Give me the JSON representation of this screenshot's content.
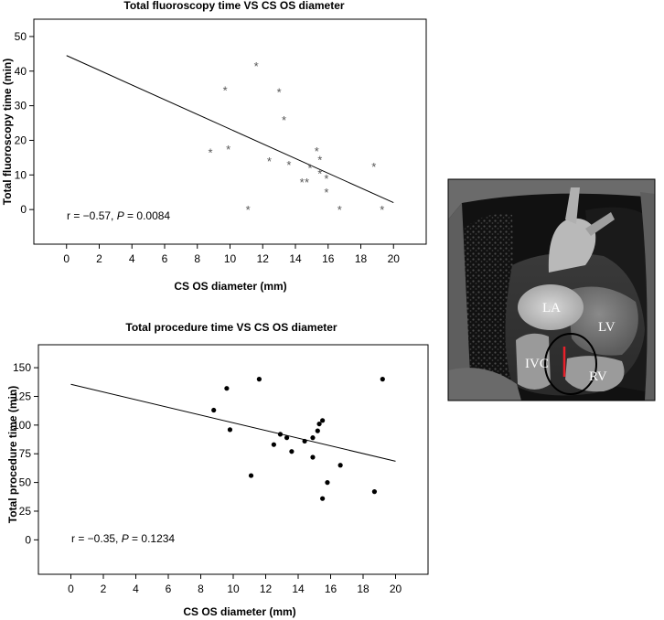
{
  "chart_data": [
    {
      "type": "scatter",
      "title": "Total fluoroscopy time VS CS OS diameter",
      "xlabel": "CS OS diameter (mm)",
      "ylabel": "Total fluoroscopy time (min)",
      "xlim": [
        -2,
        22
      ],
      "ylim": [
        -10,
        55
      ],
      "x_ticks": [
        0,
        2,
        4,
        6,
        8,
        10,
        12,
        14,
        16,
        18,
        20
      ],
      "y_ticks": [
        0,
        10,
        20,
        30,
        40,
        50
      ],
      "marker": "*",
      "points": [
        {
          "x": 8.8,
          "y": 16.5
        },
        {
          "x": 9.7,
          "y": 34.5
        },
        {
          "x": 9.9,
          "y": 17.5
        },
        {
          "x": 11.1,
          "y": 0.0
        },
        {
          "x": 11.6,
          "y": 41.5
        },
        {
          "x": 12.4,
          "y": 14.0
        },
        {
          "x": 13.0,
          "y": 34.0
        },
        {
          "x": 13.3,
          "y": 26.0
        },
        {
          "x": 13.6,
          "y": 13.0
        },
        {
          "x": 14.4,
          "y": 8.0
        },
        {
          "x": 14.7,
          "y": 8.0
        },
        {
          "x": 14.9,
          "y": 12.0
        },
        {
          "x": 15.3,
          "y": 17.0
        },
        {
          "x": 15.5,
          "y": 14.5
        },
        {
          "x": 15.5,
          "y": 10.5
        },
        {
          "x": 15.9,
          "y": 9.0
        },
        {
          "x": 15.9,
          "y": 5.0
        },
        {
          "x": 16.7,
          "y": 0.0
        },
        {
          "x": 18.8,
          "y": 12.5
        },
        {
          "x": 19.3,
          "y": 0.0
        }
      ],
      "regression_line": [
        {
          "x": 0,
          "y": 44.5
        },
        {
          "x": 20,
          "y": 2.0
        }
      ],
      "annotation": {
        "stat": "r = −0.57, ",
        "p_label": "P",
        "p_value": " = 0.0084"
      }
    },
    {
      "type": "scatter",
      "title": "Total procedure time VS CS OS diameter",
      "xlabel": "CS OS  diameter (mm)",
      "ylabel": "Total procedure time (min)",
      "xlim": [
        -2,
        22
      ],
      "ylim": [
        -30,
        170
      ],
      "x_ticks": [
        0,
        2,
        4,
        6,
        8,
        10,
        12,
        14,
        16,
        18,
        20
      ],
      "y_ticks": [
        0,
        25,
        50,
        75,
        100,
        125,
        150
      ],
      "marker": "dot",
      "points": [
        {
          "x": 8.8,
          "y": 113
        },
        {
          "x": 9.6,
          "y": 132
        },
        {
          "x": 9.8,
          "y": 96
        },
        {
          "x": 11.1,
          "y": 56
        },
        {
          "x": 11.6,
          "y": 140
        },
        {
          "x": 12.5,
          "y": 83
        },
        {
          "x": 12.9,
          "y": 92
        },
        {
          "x": 13.3,
          "y": 89
        },
        {
          "x": 13.6,
          "y": 77
        },
        {
          "x": 14.4,
          "y": 86
        },
        {
          "x": 14.9,
          "y": 72
        },
        {
          "x": 14.9,
          "y": 89
        },
        {
          "x": 15.2,
          "y": 95
        },
        {
          "x": 15.3,
          "y": 101
        },
        {
          "x": 15.5,
          "y": 104
        },
        {
          "x": 15.5,
          "y": 36
        },
        {
          "x": 15.8,
          "y": 50
        },
        {
          "x": 16.6,
          "y": 65
        },
        {
          "x": 18.7,
          "y": 42
        },
        {
          "x": 19.2,
          "y": 140
        }
      ],
      "regression_line": [
        {
          "x": 0,
          "y": 135.5
        },
        {
          "x": 20,
          "y": 68.5
        }
      ],
      "annotation": {
        "stat": "r = −0.35, ",
        "p_label": "P",
        "p_value": " = 0.1234"
      }
    }
  ],
  "ct_image": {
    "labels": {
      "la": "LA",
      "lv": "LV",
      "ivc": "IVC",
      "rv": "RV"
    },
    "colors": {
      "circle": "#000000",
      "marker": "#e8202a"
    }
  }
}
